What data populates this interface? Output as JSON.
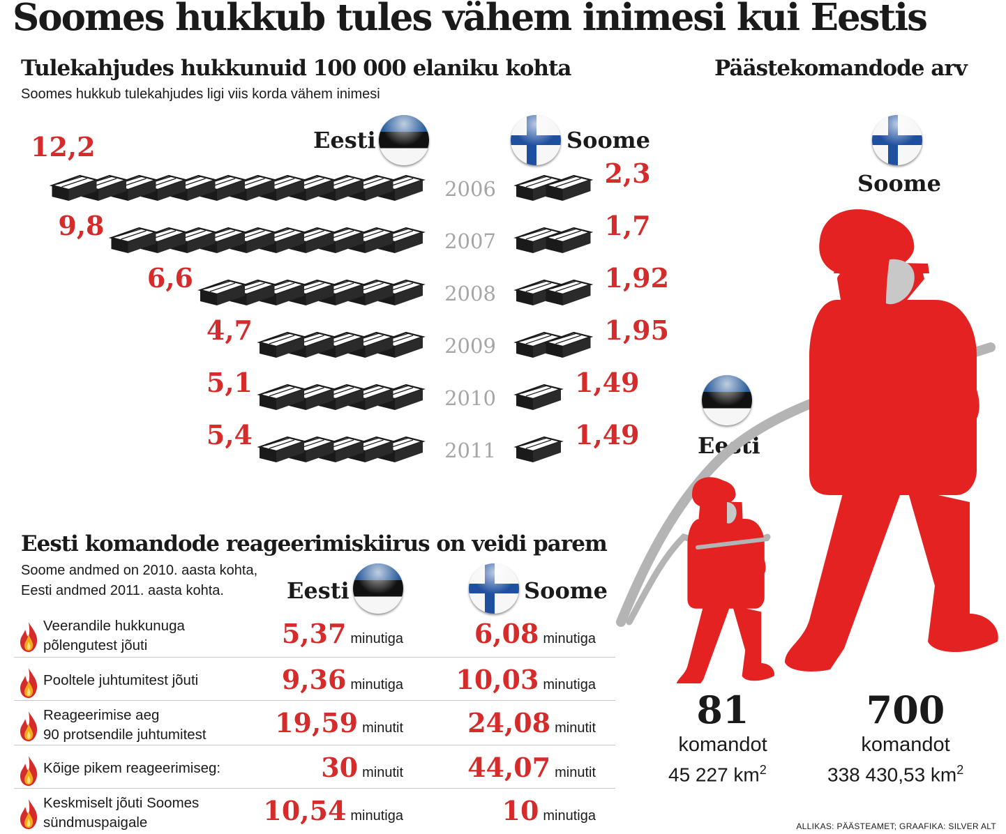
{
  "title": "Soomes hukkub tules vähem inimesi kui Eestis",
  "deaths": {
    "heading": "Tulekahjudes hukkunuid 100 000 elaniku kohta",
    "subheading": "Soomes hukkub tulekahjudes ligi viis korda vähem inimesi",
    "left_label": "Eesti",
    "right_label": "Soome"
  },
  "chart_data": {
    "type": "bar",
    "title": "Tulekahjudes hukkunuid 100 000 elaniku kohta",
    "categories": [
      "2006",
      "2007",
      "2008",
      "2009",
      "2010",
      "2011"
    ],
    "series": [
      {
        "name": "Eesti",
        "values": [
          12.2,
          9.8,
          6.6,
          4.7,
          5.1,
          5.4
        ],
        "labels": [
          "12,2",
          "9,8",
          "6,6",
          "4,7",
          "5,1",
          "5,4"
        ]
      },
      {
        "name": "Soome",
        "values": [
          2.3,
          1.7,
          1.92,
          1.95,
          1.49,
          1.49
        ],
        "labels": [
          "2,3",
          "1,7",
          "1,92",
          "1,95",
          "1,49",
          "1,49"
        ]
      }
    ]
  },
  "stations": {
    "heading": "Päästekomandode arv",
    "finland": {
      "label": "Soome",
      "count": "700",
      "unit": "komandot",
      "area": "338 430,53 km",
      "area_sup": "2"
    },
    "estonia": {
      "label": "Eesti",
      "count": "81",
      "unit": "komandot",
      "area": "45 227 km",
      "area_sup": "2"
    }
  },
  "response": {
    "heading": "Eesti komandode reageerimiskiirus on veidi parem",
    "note": "Soome andmed on 2010. aasta kohta,\nEesti andmed 2011. aasta kohta.",
    "col_left": "Eesti",
    "col_right": "Soome",
    "rows": [
      {
        "label": "Veerandile hukkunuga\npõlengutest jõuti",
        "ee": "5,37",
        "ee_unit": "minutiga",
        "fi": "6,08",
        "fi_unit": "minutiga"
      },
      {
        "label": "Pooltele juhtumitest jõuti",
        "ee": "9,36",
        "ee_unit": "minutiga",
        "fi": "10,03",
        "fi_unit": "minutiga"
      },
      {
        "label": "Reageerimise aeg\n90 protsendile juhtumitest",
        "ee": "19,59",
        "ee_unit": "minutit",
        "fi": "24,08",
        "fi_unit": "minutit"
      },
      {
        "label": "Kõige pikem reageerimiseg:",
        "ee": "30",
        "ee_unit": "minutit",
        "fi": "44,07",
        "fi_unit": "minutit"
      },
      {
        "label": "Keskmiselt jõuti Soomes\nsündmuspaigale",
        "ee": "10,54",
        "ee_unit": "minutiga",
        "fi": "10",
        "fi_unit": "minutiga"
      }
    ]
  },
  "source": "ALLIKAS: PÄÄSTEAMET; GRAAFIKA: SILVER ALT",
  "colors": {
    "accent": "#d52b2b",
    "year": "#a5a5a5",
    "hose": "#b4b4b4",
    "firefighter": "#e52222"
  },
  "icons": [
    "estonia-flag-icon",
    "finland-flag-icon",
    "flame-icon",
    "firefighter-icon",
    "coffin-icon"
  ]
}
